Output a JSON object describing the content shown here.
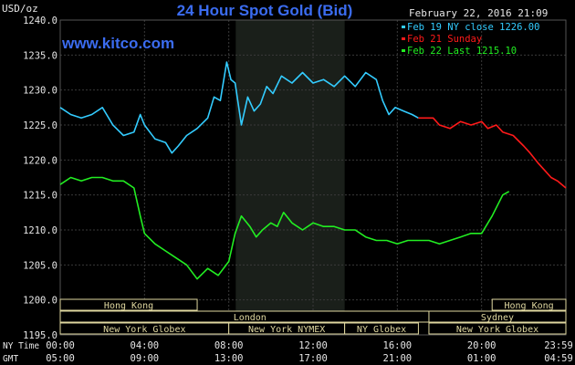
{
  "header": {
    "title": "24 Hour Spot Gold (Bid)",
    "timestamp": "February 22, 2016 21:09",
    "site": "www.kitco.com",
    "unit": "USD/oz"
  },
  "legend": [
    {
      "label": "Feb 19 NY close 1226.00",
      "color": "#33ccff"
    },
    {
      "label": "Feb 21 Sunday",
      "color": "#ff1a1a"
    },
    {
      "label": "Feb 22 Last 1215.10",
      "color": "#22ee22"
    }
  ],
  "colors": {
    "background": "#000000",
    "highlight": "#1a1f1a",
    "grid": "#3a3a3a",
    "text": "#e6e6e6",
    "title": "#3b6cf0",
    "session_fill": "#e0d8a0"
  },
  "bottom_labels": {
    "ny_time": "NY Time",
    "gmt": "GMT"
  },
  "sessions": [
    {
      "label": "Hong Kong",
      "row": 0,
      "start": 0,
      "end": 6.5
    },
    {
      "label": "Hong Kong",
      "row": 0,
      "start": 20.5,
      "end": 24
    },
    {
      "label": "London",
      "row": 1,
      "start": 0,
      "end": 18
    },
    {
      "label": "Sydney",
      "row": 1,
      "start": 17.5,
      "end": 24
    },
    {
      "label": "New York Globex",
      "row": 2,
      "start": 0,
      "end": 8
    },
    {
      "label": "New York NYMEX",
      "row": 2,
      "start": 8,
      "end": 13.5
    },
    {
      "label": "NY Globex",
      "row": 2,
      "start": 13.5,
      "end": 17
    },
    {
      "label": "New York Globex",
      "row": 2,
      "start": 17.5,
      "end": 24
    }
  ],
  "chart_data": {
    "type": "line",
    "title": "24 Hour Spot Gold (Bid)",
    "ylabel": "USD/oz",
    "xlabel": "",
    "xlim": [
      0,
      24
    ],
    "ylim": [
      1195,
      1240
    ],
    "highlight_range": [
      8.33,
      13.5
    ],
    "yticks": [
      "1195.0",
      "1200.0",
      "1205.0",
      "1210.0",
      "1215.0",
      "1220.0",
      "1225.0",
      "1230.0",
      "1235.0",
      "1240.0"
    ],
    "xticks_ny": [
      "00:00",
      "04:00",
      "08:00",
      "12:00",
      "16:00",
      "20:00",
      "23:59"
    ],
    "xticks_gmt": [
      "05:00",
      "09:00",
      "13:00",
      "17:00",
      "21:00",
      "01:00",
      "04:59"
    ],
    "series": [
      {
        "name": "Feb 19 NY close 1226.00",
        "color": "#33ccff",
        "x": [
          0,
          0.5,
          1,
          1.5,
          2,
          2.5,
          3,
          3.5,
          3.8,
          4,
          4.5,
          5,
          5.3,
          5.6,
          6,
          6.5,
          7,
          7.3,
          7.6,
          7.9,
          8.1,
          8.3,
          8.6,
          8.9,
          9.2,
          9.5,
          9.8,
          10.1,
          10.5,
          11,
          11.5,
          12,
          12.5,
          13,
          13.5,
          14,
          14.5,
          15,
          15.3,
          15.6,
          15.9,
          16.3,
          16.7,
          17
        ],
        "y": [
          1227.5,
          1226.5,
          1226,
          1226.5,
          1227.5,
          1225,
          1223.5,
          1224,
          1226.5,
          1225,
          1223,
          1222.5,
          1221,
          1222,
          1223.5,
          1224.5,
          1226,
          1229,
          1228.5,
          1234,
          1231.5,
          1231,
          1225,
          1229,
          1227,
          1228,
          1230.5,
          1229.5,
          1232,
          1231,
          1232.5,
          1231,
          1231.5,
          1230.5,
          1232,
          1230.5,
          1232.5,
          1231.5,
          1228.5,
          1226.5,
          1227.5,
          1227,
          1226.5,
          1226
        ]
      },
      {
        "name": "Feb 21 Sunday",
        "color": "#ff1a1a",
        "x": [
          17,
          17.7,
          18,
          18.5,
          19,
          19.5,
          20,
          20.3,
          20.7,
          21,
          21.5,
          22,
          22.3,
          22.7,
          23,
          23.3,
          23.6,
          24
        ],
        "y": [
          1226,
          1226,
          1225,
          1224.5,
          1225.5,
          1225,
          1225.5,
          1224.5,
          1225,
          1224,
          1223.5,
          1222,
          1221,
          1219.5,
          1218.5,
          1217.5,
          1217,
          1216
        ]
      },
      {
        "name": "Feb 22 Last 1215.10",
        "color": "#22ee22",
        "x": [
          0,
          0.5,
          1,
          1.5,
          2,
          2.5,
          3,
          3.5,
          3.8,
          4,
          4.5,
          5,
          5.5,
          6,
          6.5,
          7,
          7.5,
          8,
          8.3,
          8.6,
          9,
          9.3,
          9.6,
          10,
          10.3,
          10.6,
          11,
          11.5,
          12,
          12.5,
          13,
          13.5,
          14,
          14.5,
          15,
          15.5,
          16,
          16.5,
          17,
          17.5,
          18,
          18.5,
          19,
          19.5,
          20,
          20.5,
          21,
          21.3
        ],
        "y": [
          1216.5,
          1217.5,
          1217,
          1217.5,
          1217.5,
          1217,
          1217,
          1216,
          1212,
          1209.5,
          1208,
          1207,
          1206,
          1205,
          1203,
          1204.5,
          1203.5,
          1205.5,
          1209.5,
          1212,
          1210.5,
          1209,
          1210,
          1211,
          1210.5,
          1212.5,
          1211,
          1210,
          1211,
          1210.5,
          1210.5,
          1210,
          1210,
          1209,
          1208.5,
          1208.5,
          1208,
          1208.5,
          1208.5,
          1208.5,
          1208,
          1208.5,
          1209,
          1209.5,
          1209.5,
          1212,
          1215,
          1215.5
        ]
      }
    ]
  }
}
